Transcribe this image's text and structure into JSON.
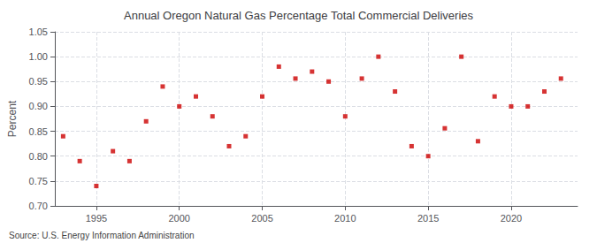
{
  "chart_data": {
    "type": "scatter",
    "title": "Annual Oregon Natural Gas Percentage Total Commercial Deliveries",
    "ylabel": "Percent",
    "annotations": [
      "Source: U.S. Energy Information Administration"
    ],
    "color": "#cc0000",
    "marker": "square",
    "grid": true,
    "xlim": [
      1992.5,
      2024
    ],
    "xticks": [
      1995,
      2000,
      2005,
      2010,
      2015,
      2020
    ],
    "ylim": [
      0.7,
      1.05
    ],
    "yticks": [
      {
        "value": 0.7,
        "label": "0.70"
      },
      0.75,
      {
        "value": 0.8,
        "label": "0.80"
      },
      0.85,
      {
        "value": 0.9,
        "label": "0.90"
      },
      0.95,
      {
        "value": 1.0,
        "label": "1.00"
      },
      1.05
    ],
    "x": [
      1993,
      1994,
      1995,
      1996,
      1997,
      1998,
      1999,
      2000,
      2001,
      2002,
      2003,
      2004,
      2005,
      2006,
      2007,
      2008,
      2009,
      2010,
      2011,
      2012,
      2013,
      2014,
      2015,
      2016,
      2017,
      2018,
      2019,
      2020,
      2021,
      2022,
      2023
    ],
    "values": [
      0.84,
      0.79,
      0.74,
      0.81,
      0.79,
      0.87,
      0.94,
      0.9,
      0.92,
      0.88,
      0.82,
      0.84,
      0.92,
      0.98,
      0.956,
      0.97,
      0.95,
      0.88,
      0.956,
      1.0,
      0.93,
      0.82,
      0.8,
      0.856,
      1.0,
      0.83,
      0.92,
      0.9,
      0.9,
      0.93,
      0.956
    ]
  }
}
